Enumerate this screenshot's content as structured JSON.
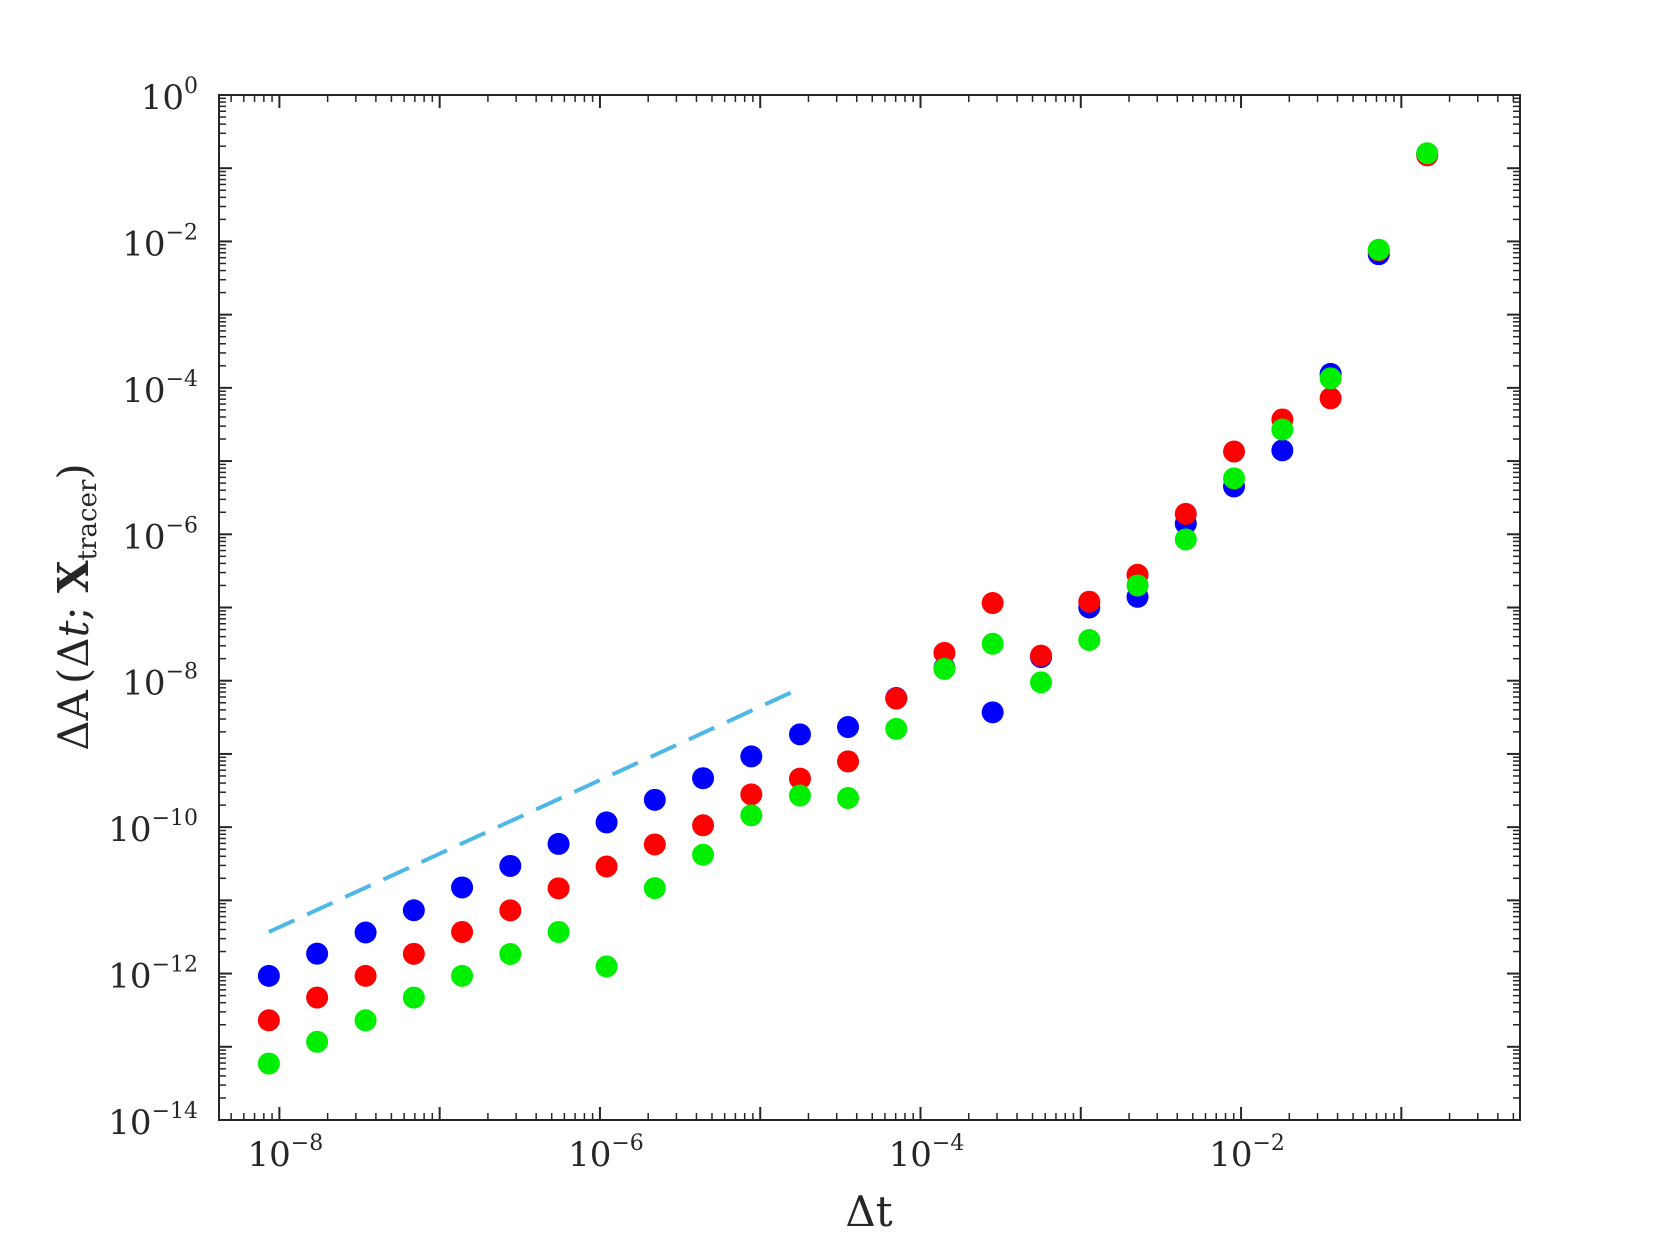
{
  "chart_data": {
    "type": "scatter",
    "title": "",
    "xlabel": "Δt",
    "ylabel": {
      "prefix": "ΔA",
      "open": "(",
      "delta": "Δ",
      "t": "t",
      "sep": "; ",
      "bold": "X",
      "sub": "tracer",
      "close": ")"
    },
    "x_scale": "log",
    "y_scale": "log",
    "xlim": [
      4.2e-09,
      0.55
    ],
    "ylim": [
      1e-14,
      1
    ],
    "x_ticks": [
      {
        "base": "10",
        "exp": "−8",
        "value": 1e-08
      },
      {
        "base": "10",
        "exp": "−6",
        "value": 1e-06
      },
      {
        "base": "10",
        "exp": "−4",
        "value": 0.0001
      },
      {
        "base": "10",
        "exp": "−2",
        "value": 0.01
      }
    ],
    "y_ticks": [
      {
        "base": "10",
        "exp": "0",
        "value": 1
      },
      {
        "base": "10",
        "exp": "−2",
        "value": 0.01
      },
      {
        "base": "10",
        "exp": "−4",
        "value": 0.0001
      },
      {
        "base": "10",
        "exp": "−6",
        "value": 1e-06
      },
      {
        "base": "10",
        "exp": "−8",
        "value": 1e-08
      },
      {
        "base": "10",
        "exp": "−10",
        "value": 1e-10
      },
      {
        "base": "10",
        "exp": "−12",
        "value": 1e-12
      },
      {
        "base": "10",
        "exp": "−14",
        "value": 1e-14
      }
    ],
    "grid": false,
    "x": [
      8.6e-09,
      1.72e-08,
      3.45e-08,
      6.9e-08,
      1.38e-07,
      2.76e-07,
      5.52e-07,
      1.1e-06,
      2.2e-06,
      4.4e-06,
      8.8e-06,
      1.77e-05,
      3.53e-05,
      7.06e-05,
      0.000141,
      0.000282,
      0.000565,
      0.00113,
      0.00226,
      0.00452,
      0.00904,
      0.0181,
      0.0362,
      0.0723,
      0.145
    ],
    "series": [
      {
        "color": "#0000ff",
        "values": [
          9.3e-13,
          1.87e-12,
          3.64e-12,
          7.33e-12,
          1.5e-11,
          2.95e-11,
          5.9e-11,
          1.16e-10,
          2.36e-10,
          4.66e-10,
          9.25e-10,
          1.85e-09,
          2.33e-09,
          5.8e-09,
          1.5e-08,
          3.7e-09,
          2.1e-08,
          1e-07,
          1.4e-07,
          1.4e-06,
          4.5e-06,
          1.4e-05,
          0.000155,
          0.0067,
          0.155
        ]
      },
      {
        "color": "#ff0000",
        "values": [
          2.3e-13,
          4.7e-13,
          9.3e-13,
          1.86e-12,
          3.7e-12,
          7.3e-12,
          1.46e-11,
          2.9e-11,
          5.8e-11,
          1.06e-10,
          2.8e-10,
          4.6e-10,
          7.9e-10,
          5.7e-09,
          2.4e-08,
          1.15e-07,
          2.2e-08,
          1.2e-07,
          2.8e-07,
          1.9e-06,
          1.35e-05,
          3.7e-05,
          7.2e-05,
          0.0075,
          0.15
        ]
      },
      {
        "color": "#00ee00",
        "values": [
          5.9e-14,
          1.17e-13,
          2.3e-13,
          4.7e-13,
          9.3e-13,
          1.85e-12,
          3.7e-12,
          1.25e-12,
          1.47e-11,
          4.2e-11,
          1.45e-10,
          2.7e-10,
          2.5e-10,
          2.2e-09,
          1.45e-08,
          3.2e-08,
          9.5e-09,
          3.6e-08,
          2e-07,
          8.5e-07,
          5.8e-06,
          2.7e-05,
          0.000135,
          0.0077,
          0.16
        ]
      }
    ],
    "reference_line": {
      "color": "#4db8e8",
      "style": "dashed",
      "x": [
        8.6e-09,
        1.76e-05
      ],
      "y": [
        3.7e-12,
        7.8e-09
      ]
    }
  }
}
